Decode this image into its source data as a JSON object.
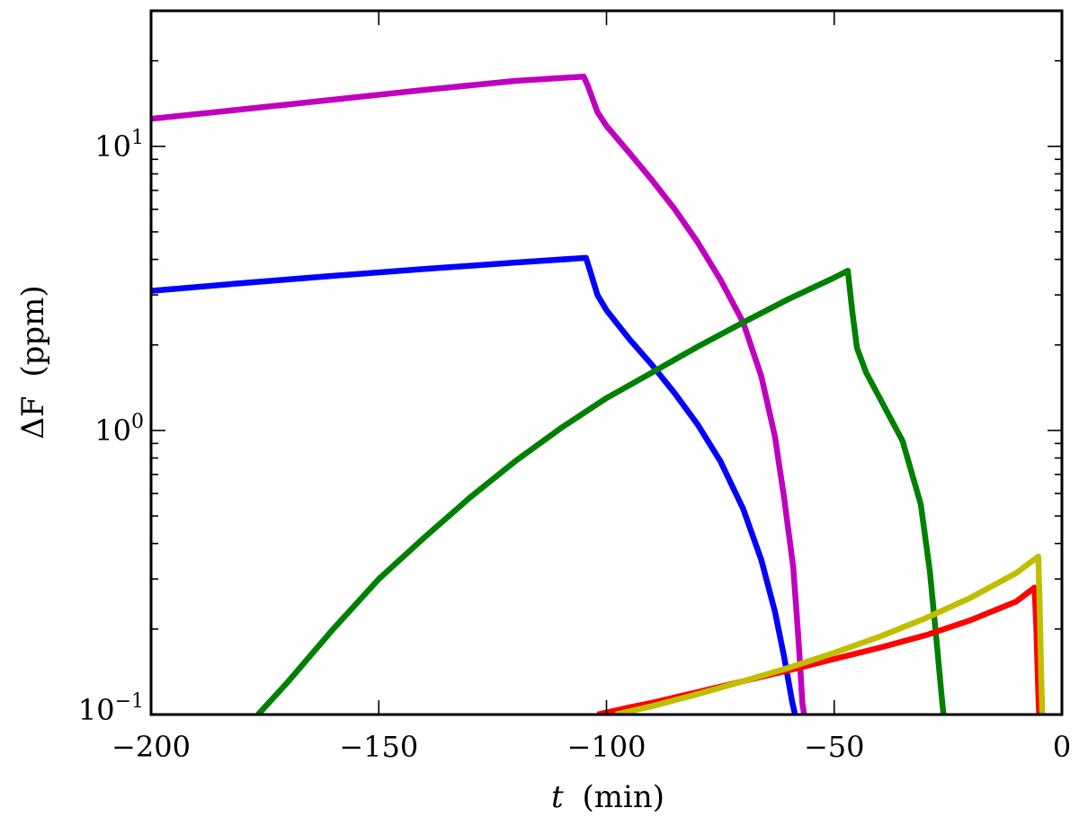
{
  "chart_data": {
    "type": "line",
    "title": "",
    "xlabel": {
      "symbol": "t",
      "unit": "(min)"
    },
    "ylabel": {
      "symbol": "ΔF",
      "unit": "(ppm)"
    },
    "xlim": [
      -200,
      0
    ],
    "ylim": [
      0.1,
      30
    ],
    "yscale": "log",
    "grid": false,
    "legend": "none",
    "x_ticks": [
      {
        "value": -200,
        "label": "−200"
      },
      {
        "value": -150,
        "label": "−150"
      },
      {
        "value": -100,
        "label": "−100"
      },
      {
        "value": -50,
        "label": "−50"
      },
      {
        "value": 0,
        "label": "0"
      }
    ],
    "y_ticks": [
      {
        "value": 0.1,
        "base": "10",
        "exp": "−1"
      },
      {
        "value": 1,
        "base": "10",
        "exp": "0"
      },
      {
        "value": 10,
        "base": "10",
        "exp": "1"
      }
    ],
    "series": [
      {
        "color": "#bf00bf",
        "x": [
          -200,
          -180,
          -160,
          -140,
          -120,
          -105,
          -104,
          -102,
          -100,
          -95,
          -90,
          -85,
          -80,
          -75,
          -70,
          -66,
          -63,
          -61,
          -59,
          -58,
          -57.5,
          -57,
          -56.6
        ],
        "y": [
          12.5,
          13.5,
          14.6,
          15.8,
          17,
          17.6,
          16.2,
          13.2,
          11.8,
          9.5,
          7.6,
          6.0,
          4.6,
          3.4,
          2.4,
          1.55,
          0.95,
          0.58,
          0.33,
          0.2,
          0.15,
          0.11,
          0.1
        ]
      },
      {
        "color": "#0000ff",
        "x": [
          -200,
          -180,
          -160,
          -140,
          -120,
          -104.5,
          -103.5,
          -102,
          -100,
          -95,
          -90,
          -85,
          -80,
          -75,
          -70,
          -66,
          -63,
          -61,
          -60,
          -59.2,
          -58.6
        ],
        "y": [
          3.1,
          3.3,
          3.5,
          3.7,
          3.9,
          4.05,
          3.6,
          3.0,
          2.65,
          2.1,
          1.7,
          1.35,
          1.05,
          0.78,
          0.53,
          0.35,
          0.23,
          0.16,
          0.13,
          0.11,
          0.1
        ]
      },
      {
        "color": "#008000",
        "x": [
          -176.5,
          -170,
          -160,
          -150,
          -140,
          -130,
          -120,
          -110,
          -100,
          -90,
          -80,
          -70,
          -60,
          -50,
          -47,
          -46,
          -45,
          -43,
          -40,
          -35,
          -31,
          -29,
          -27.5,
          -26.5,
          -26
        ],
        "y": [
          0.1,
          0.13,
          0.2,
          0.3,
          0.42,
          0.58,
          0.78,
          1.02,
          1.3,
          1.6,
          1.97,
          2.4,
          2.9,
          3.45,
          3.65,
          2.6,
          1.95,
          1.6,
          1.3,
          0.92,
          0.55,
          0.32,
          0.18,
          0.12,
          0.1
        ]
      },
      {
        "color": "#ff0000",
        "x": [
          -102,
          -95,
          -90,
          -80,
          -70,
          -60,
          -50,
          -40,
          -30,
          -20,
          -10,
          -6,
          -5.6,
          -5.2,
          -5
        ],
        "y": [
          0.1,
          0.106,
          0.11,
          0.12,
          0.131,
          0.143,
          0.157,
          0.172,
          0.19,
          0.215,
          0.25,
          0.28,
          0.2,
          0.12,
          0.1
        ]
      },
      {
        "color": "#bfbf00",
        "x": [
          -98,
          -90,
          -80,
          -70,
          -60,
          -50,
          -40,
          -30,
          -20,
          -10,
          -5.2,
          -4.9,
          -4.6,
          -4.3
        ],
        "y": [
          0.1,
          0.107,
          0.118,
          0.131,
          0.146,
          0.165,
          0.188,
          0.218,
          0.258,
          0.315,
          0.36,
          0.25,
          0.15,
          0.1
        ]
      }
    ]
  }
}
